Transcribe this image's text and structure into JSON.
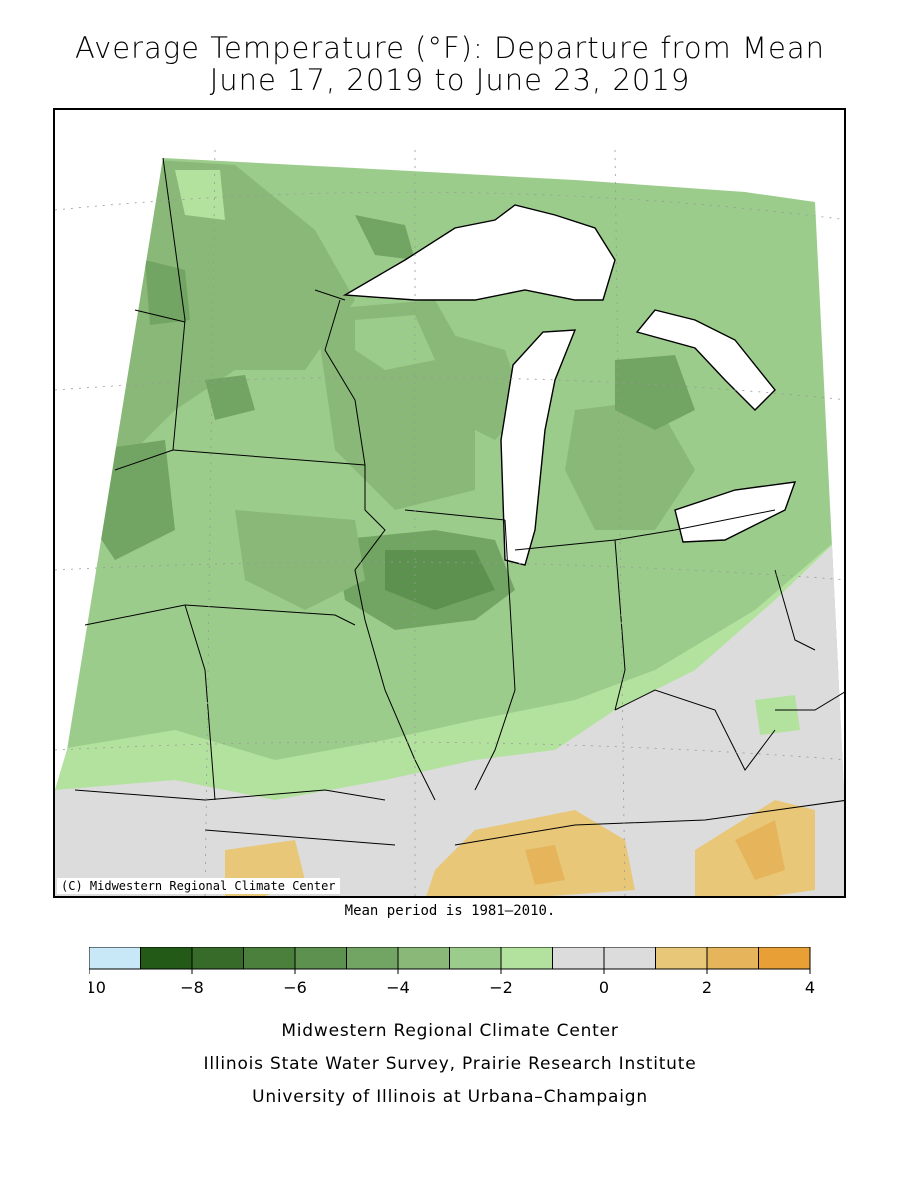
{
  "title_line1": "Average Temperature (°F): Departure from Mean",
  "title_line2": "June 17, 2019 to June 23, 2019",
  "copyright": "(C) Midwestern Regional Climate Center",
  "mean_note": "Mean period is 1981–2010.",
  "legend": {
    "colors": [
      "#c8e8f8",
      "#245a18",
      "#376b2a",
      "#4a7f3c",
      "#5d9150",
      "#72a563",
      "#89b878",
      "#9ccc8c",
      "#b3e29e",
      "#dcdcdc",
      "#dcdcdc",
      "#e8c878",
      "#e6b45a",
      "#e8a036"
    ],
    "ticks": [
      "−10",
      "−8",
      "−6",
      "−4",
      "−2",
      "0",
      "2",
      "4"
    ]
  },
  "footer": {
    "line1": "Midwestern Regional Climate Center",
    "line2": "Illinois State Water Survey, Prairie Research Institute",
    "line3": "University of Illinois at Urbana–Champaign"
  }
}
